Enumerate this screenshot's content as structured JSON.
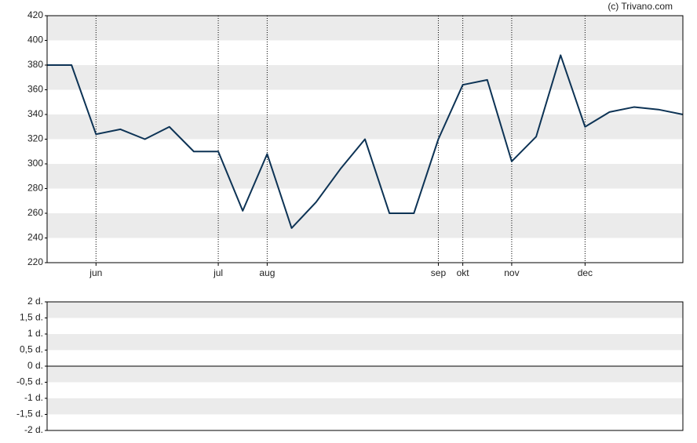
{
  "credit": "(c) Trivano.com",
  "chart_data": [
    {
      "type": "line",
      "categories": [
        null,
        null,
        "jun",
        null,
        null,
        null,
        null,
        "jul",
        null,
        "aug",
        null,
        null,
        null,
        null,
        null,
        null,
        "sep",
        "okt",
        null,
        "nov",
        null,
        null,
        "dec",
        null,
        null,
        null,
        null
      ],
      "series": [
        {
          "color": "#0d3355",
          "values": [
            380,
            380,
            324,
            328,
            320,
            330,
            310,
            310,
            262,
            308,
            248,
            269,
            296,
            320,
            260,
            260,
            320,
            364,
            368,
            302,
            322,
            388,
            330,
            342,
            346,
            344,
            340
          ]
        }
      ],
      "ylim": [
        220,
        420
      ],
      "yticks": [
        220,
        240,
        260,
        280,
        300,
        320,
        340,
        360,
        380,
        400,
        420
      ],
      "grid": true
    },
    {
      "type": "line",
      "ylim": [
        -2,
        2
      ],
      "yticks": [
        {
          "value": -2,
          "label": "-2 d."
        },
        {
          "value": -1.5,
          "label": "-1,5 d."
        },
        {
          "value": -1,
          "label": "-1 d."
        },
        {
          "value": -0.5,
          "label": "-0,5 d."
        },
        {
          "value": 0,
          "label": "0 d."
        },
        {
          "value": 0.5,
          "label": "0,5 d."
        },
        {
          "value": 1,
          "label": "1 d."
        },
        {
          "value": 1.5,
          "label": "1,5 d."
        },
        {
          "value": 2,
          "label": "2 d."
        }
      ],
      "grid": true
    }
  ]
}
